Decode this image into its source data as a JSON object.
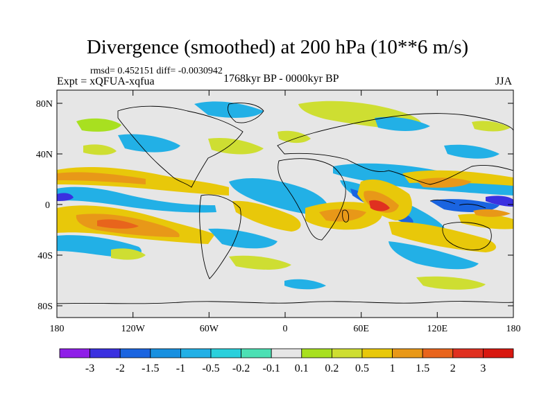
{
  "title": "Divergence (smoothed) at 200 hPa (10**6 m/s)",
  "stats": "rmsd= 0.452151 diff= -0.0030942",
  "experiment": "Expt = xQFUA-xqfua",
  "period": "1768kyr BP - 0000kyr BP",
  "season": "JJA",
  "axes": {
    "lat_labels": [
      "80N",
      "40N",
      "0",
      "40S",
      "80S"
    ],
    "lon_labels": [
      "180",
      "120W",
      "60W",
      "0",
      "60E",
      "120E",
      "180"
    ]
  },
  "colorbar": {
    "labels": [
      "-3",
      "-2",
      "-1.5",
      "-1",
      "-0.5",
      "-0.2",
      "-0.1",
      "0.1",
      "0.2",
      "0.5",
      "1",
      "1.5",
      "2",
      "3"
    ],
    "colors": [
      "#8f1ee8",
      "#3a30e0",
      "#1a64e0",
      "#1890e0",
      "#22b0e6",
      "#2ad0dc",
      "#4ce0b4",
      "#e6e6e6",
      "#a8e020",
      "#cede32",
      "#e8c80a",
      "#e89818",
      "#e8641c",
      "#e03020",
      "#d81810"
    ]
  },
  "map_colors": {
    "land_outline": "#000000",
    "neutral": "#e6e6e6"
  }
}
